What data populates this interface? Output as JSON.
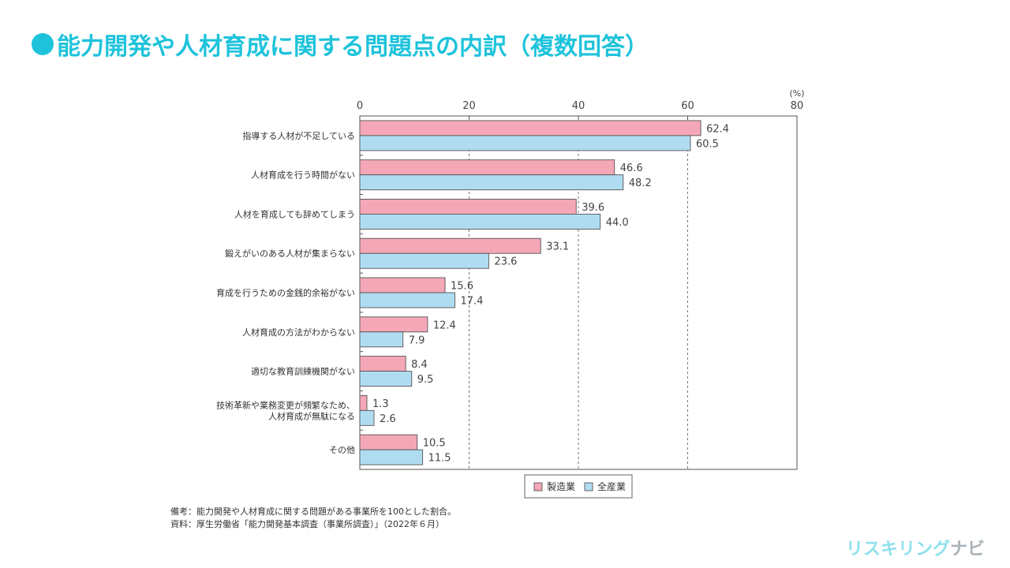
{
  "title": "能力開発や人材育成に関する問題点の内訳（複数回答）",
  "chart_data": {
    "type": "bar",
    "orientation": "horizontal",
    "title": "能力開発や人材育成に関する問題点の内訳（複数回答）",
    "unit_label": "(%)",
    "xlim": [
      0,
      80
    ],
    "ticks": [
      0,
      20,
      40,
      60,
      80
    ],
    "grid": "dashed vertical",
    "categories": [
      [
        "指導する人材が不足している"
      ],
      [
        "人材育成を行う時間がない"
      ],
      [
        "人材を育成しても辞めてしまう"
      ],
      [
        "鍛えがいのある人材が集まらない"
      ],
      [
        "育成を行うための金銭的余裕がない"
      ],
      [
        "人材育成の方法がわからない"
      ],
      [
        "適切な教育訓練機関がない"
      ],
      [
        "技術革新や業務変更が頻繁なため、",
        "人材育成が無駄になる"
      ],
      [
        "その他"
      ]
    ],
    "series": [
      {
        "name": "製造業",
        "color": "#f4a7b6",
        "values": [
          62.4,
          46.6,
          39.6,
          33.1,
          15.6,
          12.4,
          8.4,
          1.3,
          10.5
        ]
      },
      {
        "name": "全産業",
        "color": "#b0dcf2",
        "values": [
          60.5,
          48.2,
          44.0,
          23.6,
          17.4,
          7.9,
          9.5,
          2.6,
          11.5
        ]
      }
    ],
    "legend_position": "bottom-center"
  },
  "notes": {
    "remark": "備考：能力開発や人材育成に関する問題がある事業所を100とした割合。",
    "source": "資料：厚生労働省「能力開発基本調査（事業所調査）」（2022年６月）"
  },
  "logo": {
    "part1": "リスキリング",
    "part2": "ナビ"
  }
}
